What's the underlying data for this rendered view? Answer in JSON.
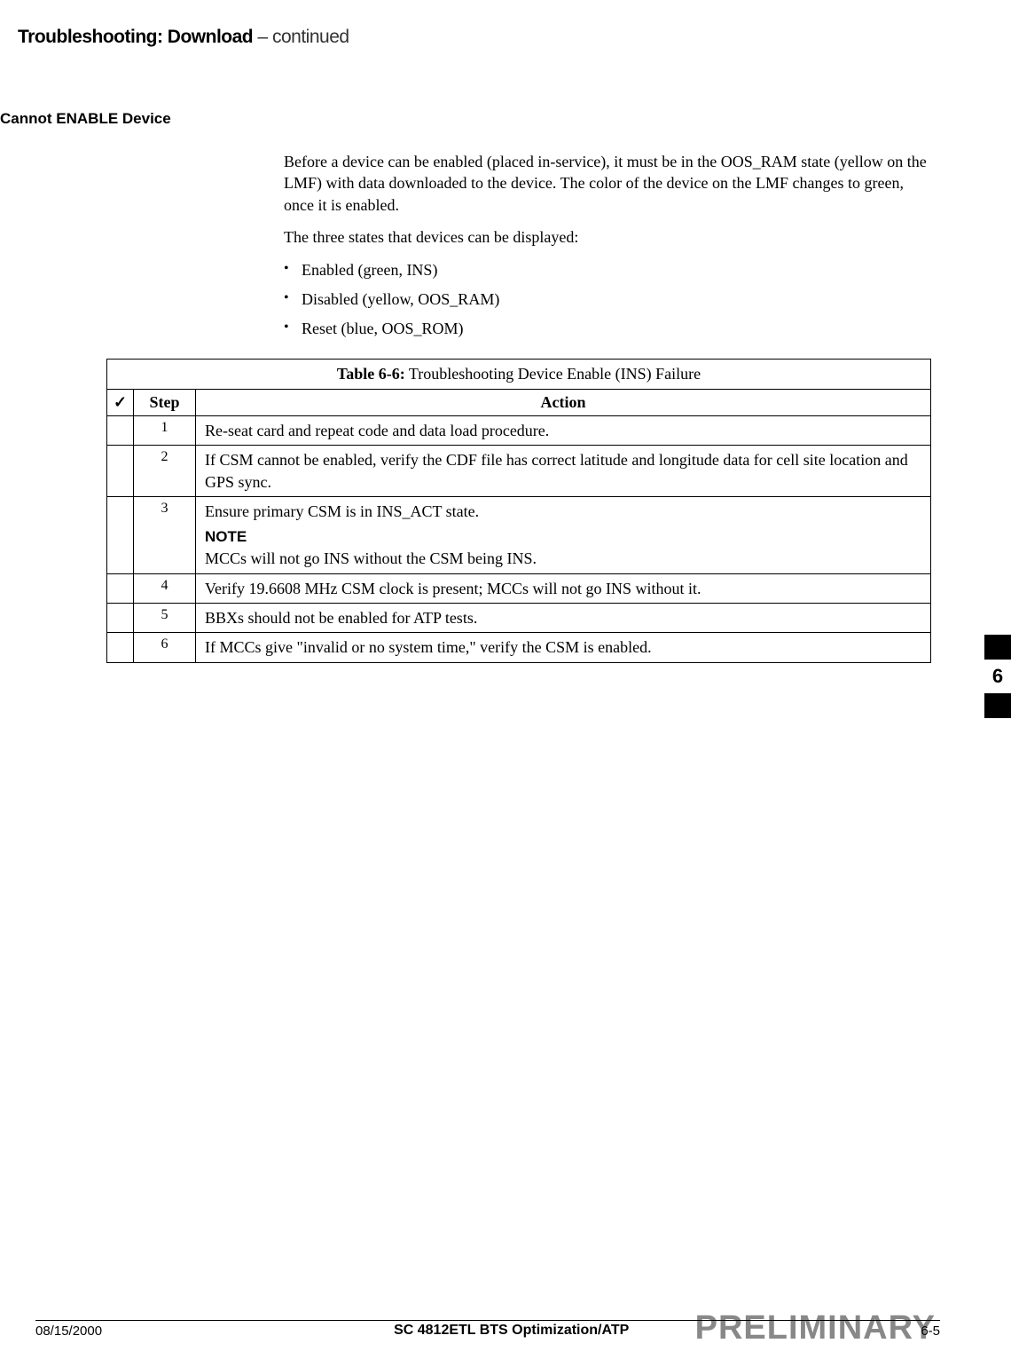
{
  "header": {
    "title_bold": "Troubleshooting: Download",
    "title_light": " – continued"
  },
  "section": {
    "heading": "Cannot ENABLE Device",
    "para1": "Before a device can be enabled (placed in-service), it must be in the OOS_RAM state (yellow on the LMF) with data downloaded to the device. The color of the device on the LMF changes to green, once it is enabled.",
    "para2": "The three states that devices can be displayed:",
    "bullets": [
      "Enabled (green, INS)",
      "Disabled (yellow, OOS_RAM)",
      "Reset (blue, OOS_ROM)"
    ]
  },
  "table": {
    "title_bold": "Table 6-6:",
    "title_rest": " Troubleshooting Device Enable (INS) Failure",
    "check_header": "✓",
    "step_header": "Step",
    "action_header": "Action",
    "rows": [
      {
        "step": "1",
        "action": "Re-seat card and repeat code and data load procedure."
      },
      {
        "step": "2",
        "action": "If CSM cannot be enabled, verify the CDF file has correct latitude and longitude data for cell site location and GPS sync."
      },
      {
        "step": "3",
        "action_line1": "Ensure primary CSM is in INS_ACT state.",
        "note_label": "NOTE",
        "action_line2": "MCCs will not go INS without the CSM being INS."
      },
      {
        "step": "4",
        "action": "Verify 19.6608 MHz CSM clock is present; MCCs will not go INS without it."
      },
      {
        "step": "5",
        "action": "BBXs should not be enabled for ATP tests."
      },
      {
        "step": "6",
        "action": "If MCCs give \"invalid or no system time,\" verify the CSM is enabled."
      }
    ]
  },
  "tab": {
    "number": "6"
  },
  "footer": {
    "date": "08/15/2000",
    "center": "SC 4812ETL BTS Optimization/ATP",
    "page": "6-5",
    "watermark": "PRELIMINARY"
  }
}
